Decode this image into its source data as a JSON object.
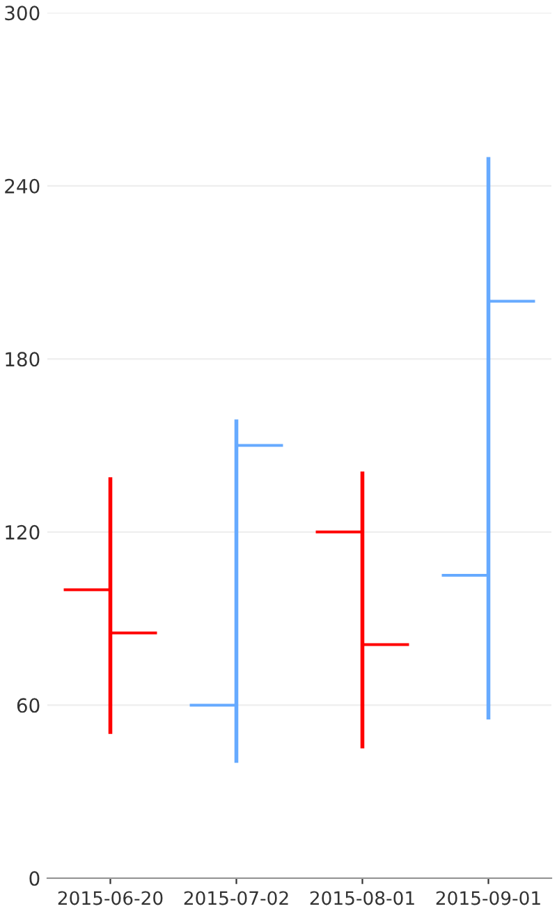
{
  "chart_data": {
    "type": "candlestick",
    "categories": [
      "2015-06-20",
      "2015-07-02",
      "2015-08-01",
      "2015-09-01"
    ],
    "ohlc": [
      [
        100,
        139,
        50,
        85
      ],
      [
        60,
        159,
        40,
        150
      ],
      [
        120,
        141,
        45,
        81
      ],
      [
        105,
        250,
        55,
        200
      ]
    ],
    "colors": [
      "#ff0000",
      "#66aaff",
      "#ff0000",
      "#66aaff"
    ],
    "ylim": [
      0,
      300
    ],
    "yticks": [
      0,
      60,
      120,
      180,
      240,
      300
    ],
    "grid": "y"
  }
}
